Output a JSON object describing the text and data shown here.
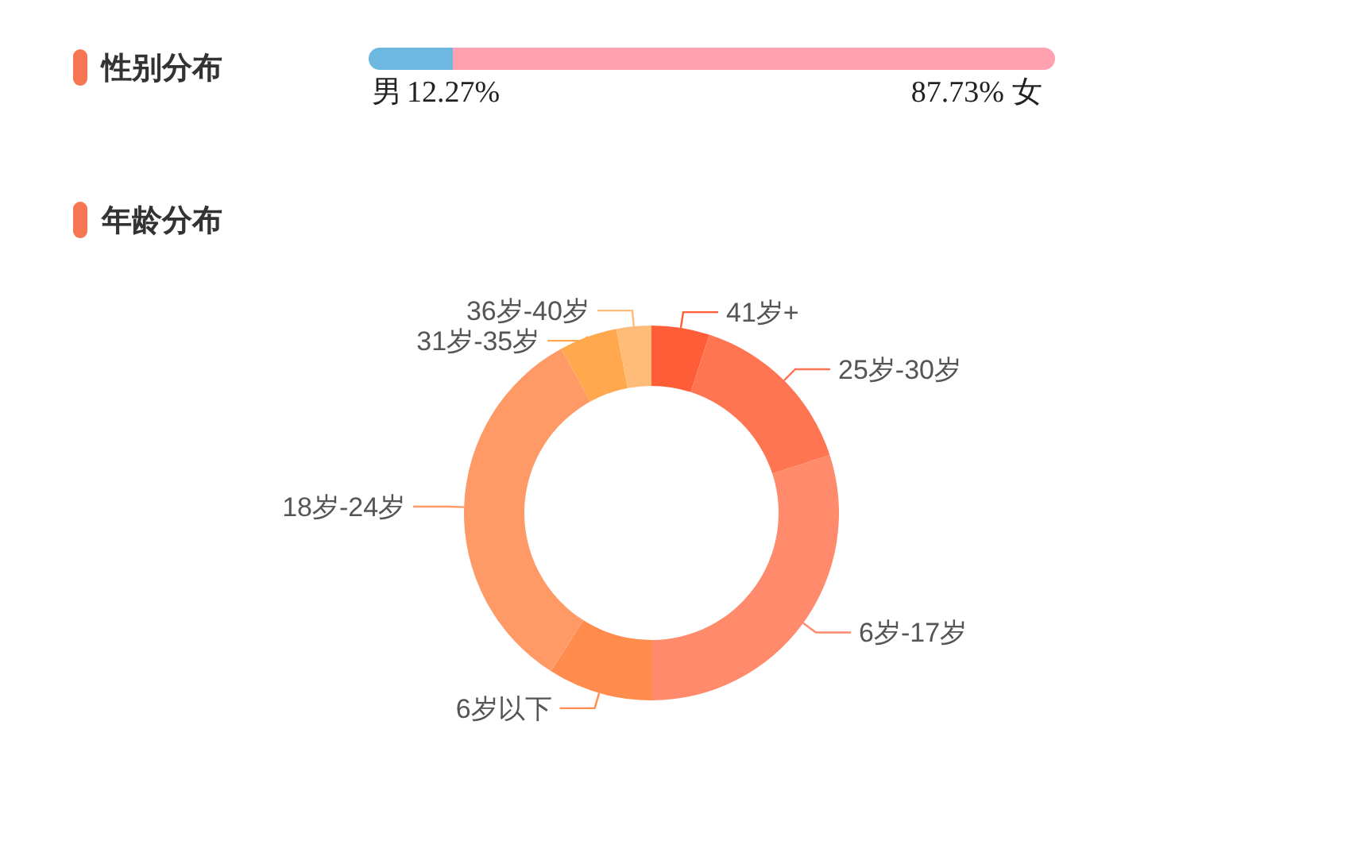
{
  "chart_data": [
    {
      "type": "bar",
      "title": "性别分布",
      "orientation": "horizontal",
      "stacked": true,
      "categories": [
        null
      ],
      "series": [
        {
          "name": "男",
          "color": "#6cb8e0",
          "values": [
            12.27
          ],
          "value_labels": [
            "12.27%"
          ]
        },
        {
          "name": "女",
          "color": "#ffa1ae",
          "values": [
            87.73
          ],
          "value_labels": [
            "87.73%"
          ]
        }
      ]
    },
    {
      "type": "donut",
      "title": "年龄分布",
      "categories": [
        "41岁+",
        "25岁-30岁",
        "6岁-17岁",
        "6岁以下",
        "18岁-24岁",
        "31岁-35岁",
        "36岁-40岁"
      ],
      "values": [
        5,
        15,
        30,
        9,
        33,
        5,
        3
      ],
      "colors": [
        "#ff5c38",
        "#ff7552",
        "#ff8a6c",
        "#ff8c4c",
        "#ff9966",
        "#ffa84e",
        "#ffbb78"
      ]
    }
  ]
}
